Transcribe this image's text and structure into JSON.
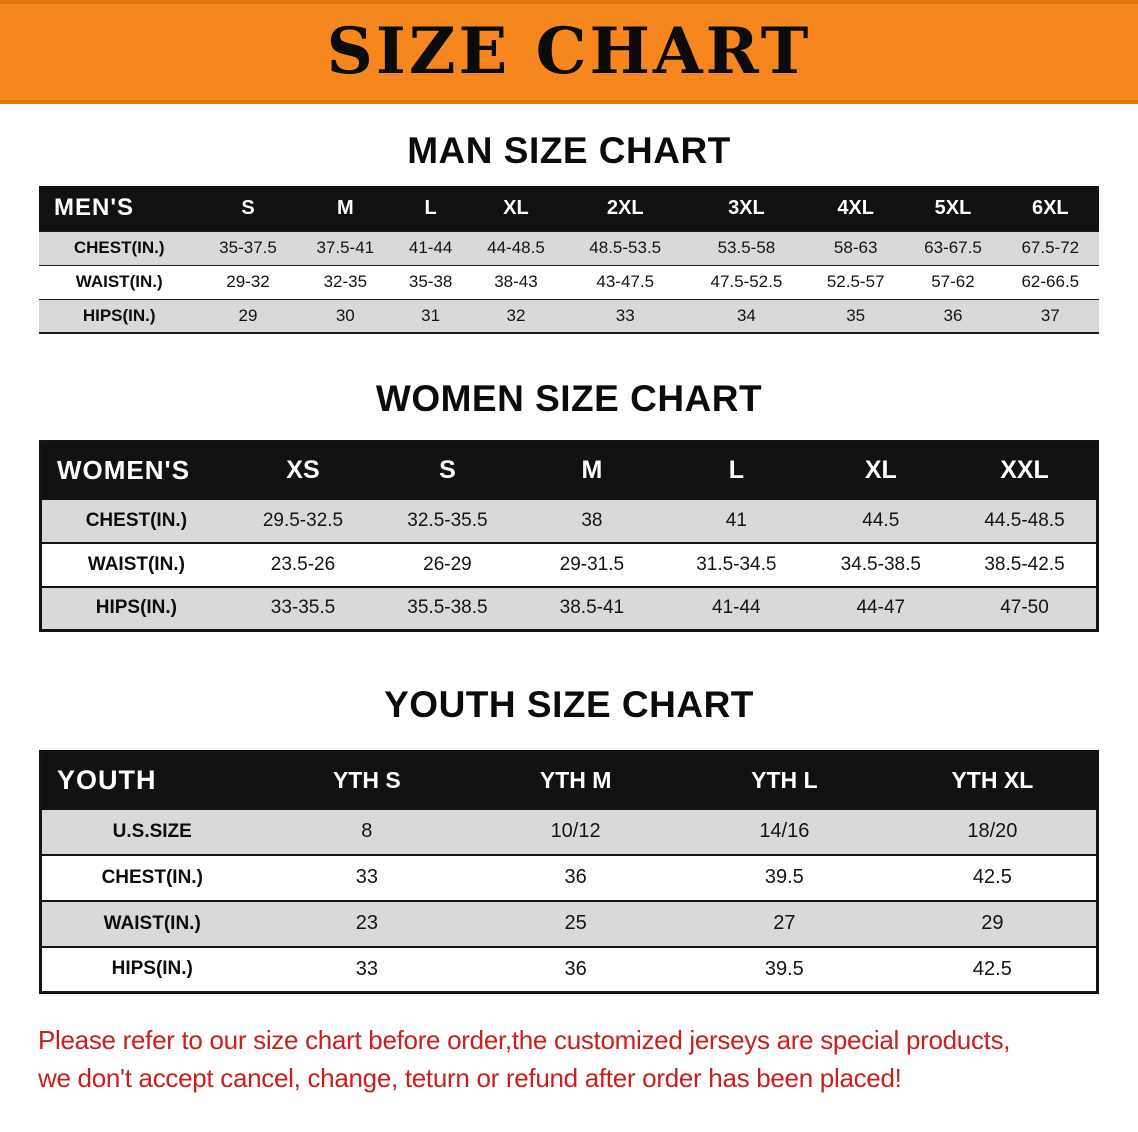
{
  "banner": {
    "title": "SIZE CHART"
  },
  "colors": {
    "banner_orange": "#f6871f",
    "header_black": "#111111",
    "row_gray": "#d9d9d9",
    "note_red": "#c9201d"
  },
  "men": {
    "heading": "MAN SIZE CHART",
    "corner": "MEN'S",
    "sizes": [
      "S",
      "M",
      "L",
      "XL",
      "2XL",
      "3XL",
      "4XL",
      "5XL",
      "6XL"
    ],
    "rows": [
      {
        "label": "CHEST(IN.)",
        "values": [
          "35-37.5",
          "37.5-41",
          "41-44",
          "44-48.5",
          "48.5-53.5",
          "53.5-58",
          "58-63",
          "63-67.5",
          "67.5-72"
        ]
      },
      {
        "label": "WAIST(IN.)",
        "values": [
          "29-32",
          "32-35",
          "35-38",
          "38-43",
          "43-47.5",
          "47.5-52.5",
          "52.5-57",
          "57-62",
          "62-66.5"
        ]
      },
      {
        "label": "HIPS(IN.)",
        "values": [
          "29",
          "30",
          "31",
          "32",
          "33",
          "34",
          "35",
          "36",
          "37"
        ]
      }
    ]
  },
  "women": {
    "heading": "WOMEN SIZE CHART",
    "corner": "WOMEN'S",
    "sizes": [
      "XS",
      "S",
      "M",
      "L",
      "XL",
      "XXL"
    ],
    "rows": [
      {
        "label": "CHEST(IN.)",
        "values": [
          "29.5-32.5",
          "32.5-35.5",
          "38",
          "41",
          "44.5",
          "44.5-48.5"
        ]
      },
      {
        "label": "WAIST(IN.)",
        "values": [
          "23.5-26",
          "26-29",
          "29-31.5",
          "31.5-34.5",
          "34.5-38.5",
          "38.5-42.5"
        ]
      },
      {
        "label": "HIPS(IN.)",
        "values": [
          "33-35.5",
          "35.5-38.5",
          "38.5-41",
          "41-44",
          "44-47",
          "47-50"
        ]
      }
    ]
  },
  "youth": {
    "heading": "YOUTH SIZE CHART",
    "corner": "YOUTH",
    "sizes": [
      "YTH S",
      "YTH M",
      "YTH L",
      "YTH XL"
    ],
    "rows": [
      {
        "label": "U.S.SIZE",
        "values": [
          "8",
          "10/12",
          "14/16",
          "18/20"
        ]
      },
      {
        "label": "CHEST(IN.)",
        "values": [
          "33",
          "36",
          "39.5",
          "42.5"
        ]
      },
      {
        "label": "WAIST(IN.)",
        "values": [
          "23",
          "25",
          "27",
          "29"
        ]
      },
      {
        "label": "HIPS(IN.)",
        "values": [
          "33",
          "36",
          "39.5",
          "42.5"
        ]
      }
    ]
  },
  "note": {
    "line1": "Please refer to our size chart before order,the customized jerseys are special products,",
    "line2": "we don't accept cancel, change, teturn or refund after order has been placed!"
  }
}
